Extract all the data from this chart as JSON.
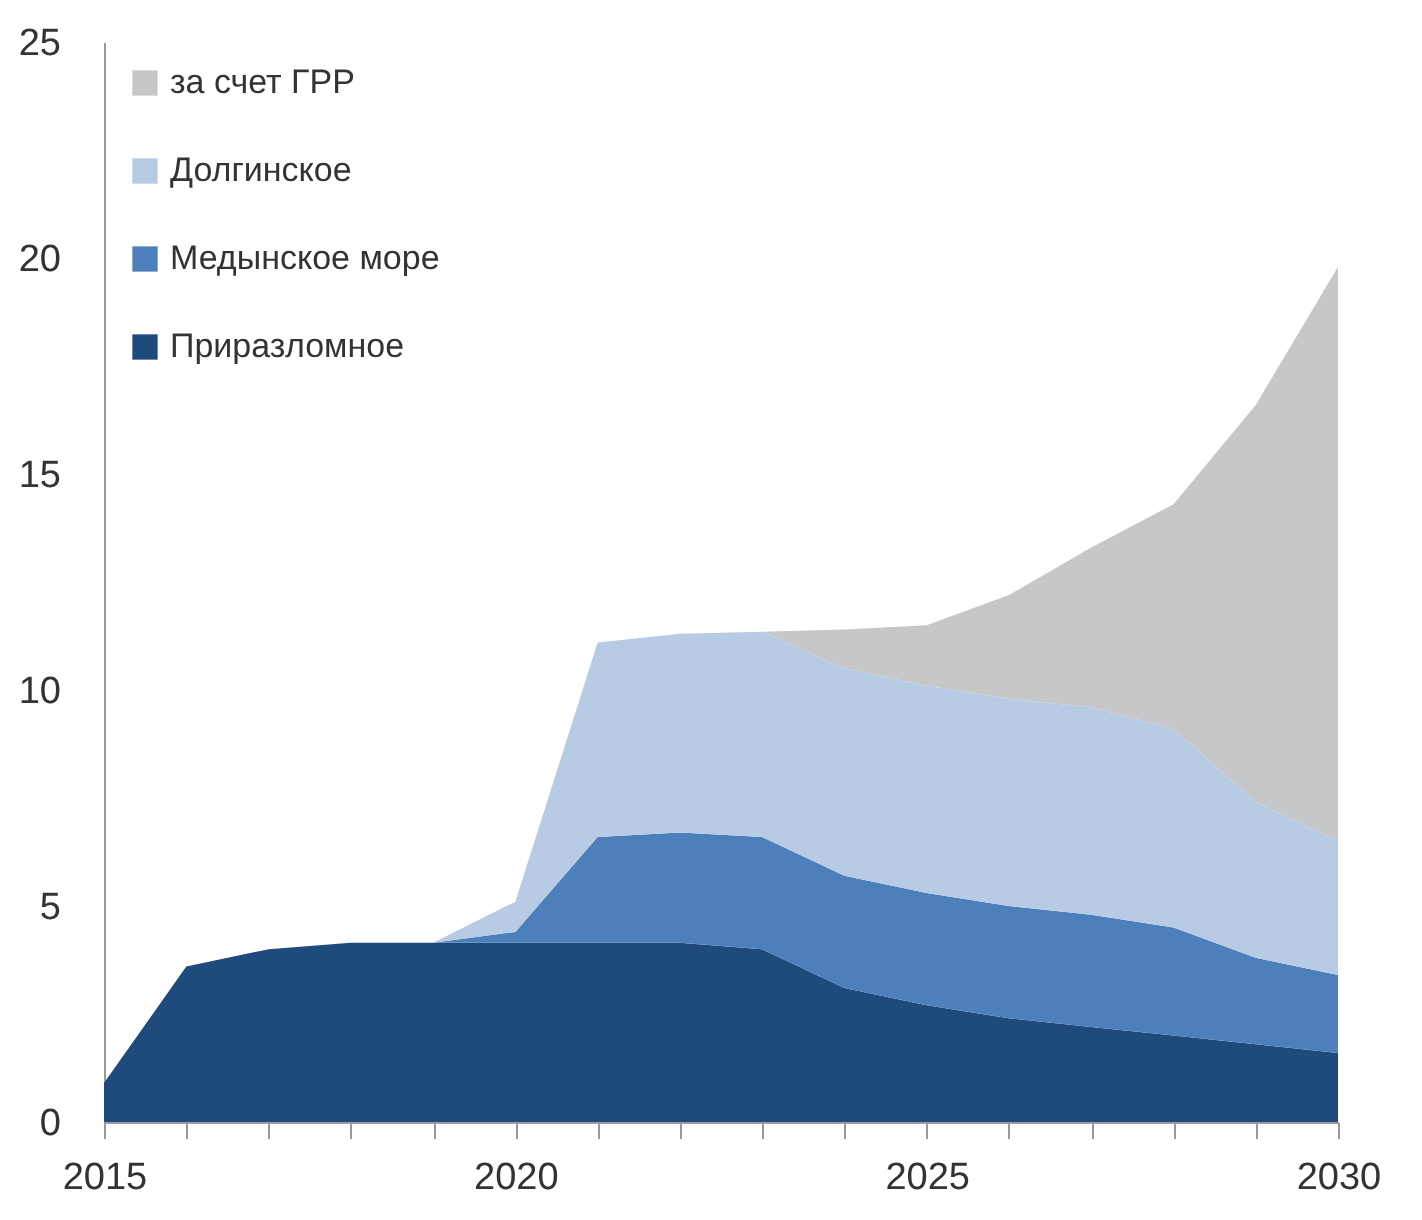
{
  "chart_data": {
    "type": "area",
    "stacked": true,
    "x": [
      2015,
      2016,
      2017,
      2018,
      2019,
      2020,
      2021,
      2022,
      2023,
      2024,
      2025,
      2026,
      2027,
      2028,
      2029,
      2030
    ],
    "series": [
      {
        "name": "Приразломное",
        "color": "#1f4a7c",
        "values": [
          0.9,
          3.6,
          4.0,
          4.15,
          4.15,
          4.15,
          4.15,
          4.15,
          4.0,
          3.1,
          2.7,
          2.4,
          2.2,
          2.0,
          1.8,
          1.6
        ]
      },
      {
        "name": "Медынское море",
        "color": "#4d80bb",
        "values": [
          0,
          0,
          0,
          0,
          0,
          0.25,
          2.45,
          2.55,
          2.6,
          2.6,
          2.6,
          2.6,
          2.6,
          2.5,
          2.0,
          1.8
        ]
      },
      {
        "name": "Долгинское",
        "color": "#b8cbe4",
        "values": [
          0,
          0,
          0,
          0,
          0,
          0.7,
          4.5,
          4.6,
          4.75,
          4.8,
          4.8,
          4.8,
          4.8,
          4.6,
          3.6,
          3.1
        ]
      },
      {
        "name": "за счет ГРР",
        "color": "#c6c7c9",
        "values": [
          0,
          0,
          0,
          0,
          0,
          0,
          0,
          0,
          0,
          0.9,
          1.4,
          2.4,
          3.7,
          5.2,
          9.2,
          13.3
        ]
      }
    ],
    "xlim": [
      2015,
      2030
    ],
    "xticks": [
      2015,
      {
        "value": 2016,
        "label": null
      },
      {
        "value": 2017,
        "label": null
      },
      {
        "value": 2018,
        "label": null
      },
      {
        "value": 2019,
        "label": null
      },
      2020,
      {
        "value": 2021,
        "label": null
      },
      {
        "value": 2022,
        "label": null
      },
      {
        "value": 2023,
        "label": null
      },
      {
        "value": 2024,
        "label": null
      },
      2025,
      {
        "value": 2026,
        "label": null
      },
      {
        "value": 2027,
        "label": null
      },
      {
        "value": 2028,
        "label": null
      },
      {
        "value": 2029,
        "label": null
      },
      2030
    ],
    "ylim": [
      0,
      25
    ],
    "yticks": [
      0,
      5,
      10,
      15,
      20,
      25
    ],
    "legend": "top left"
  }
}
